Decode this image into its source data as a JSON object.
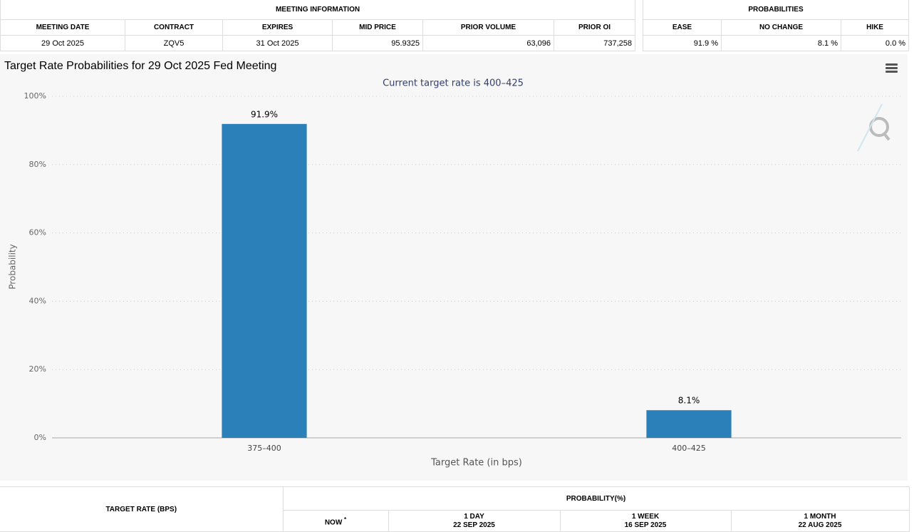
{
  "meeting_info": {
    "title": "MEETING INFORMATION",
    "columns": [
      "MEETING DATE",
      "CONTRACT",
      "EXPIRES",
      "MID PRICE",
      "PRIOR VOLUME",
      "PRIOR OI"
    ],
    "row": [
      "29 Oct 2025",
      "ZQV5",
      "31 Oct 2025",
      "95.9325",
      "63,096",
      "737,258"
    ]
  },
  "probabilities": {
    "title": "PROBABILITIES",
    "columns": [
      "EASE",
      "NO CHANGE",
      "HIKE"
    ],
    "row": [
      "91.9 %",
      "8.1 %",
      "0.0 %"
    ]
  },
  "chart_data": {
    "type": "bar",
    "title": "Target Rate Probabilities for 29 Oct 2025 Fed Meeting",
    "subtitle": "Current target rate is 400–425",
    "x_label": "Target Rate (in bps)",
    "y_label": "Probability",
    "categories": [
      "375–400",
      "400–425"
    ],
    "values": [
      91.9,
      8.1
    ],
    "value_labels": [
      "91.9%",
      "8.1%"
    ],
    "color": "#2b80b9",
    "ylim": [
      0,
      100
    ],
    "yticks": [
      {
        "value": 0,
        "label": "0%"
      },
      {
        "value": 20,
        "label": "20%"
      },
      {
        "value": 40,
        "label": "40%"
      },
      {
        "value": 60,
        "label": "60%"
      },
      {
        "value": 80,
        "label": "80%"
      },
      {
        "value": 100,
        "label": "100%"
      }
    ],
    "grid": true
  },
  "probability_table": {
    "row_header": "TARGET RATE (BPS)",
    "title": "PROBABILITY(%)",
    "columns": [
      {
        "label": "NOW",
        "note": "*"
      },
      {
        "label": "1 DAY",
        "date": "22 SEP 2025"
      },
      {
        "label": "1 WEEK",
        "date": "16 SEP 2025"
      },
      {
        "label": "1 MONTH",
        "date": "22 AUG 2025"
      }
    ]
  }
}
